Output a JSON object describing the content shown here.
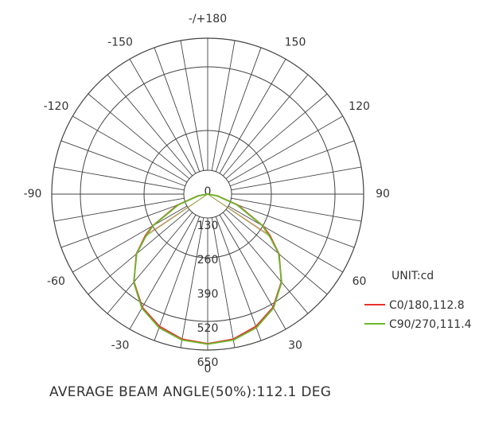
{
  "chart_data": {
    "type": "polar",
    "angle_labels": [
      {
        "angle": 180,
        "text": "-/+180"
      },
      {
        "angle": -150,
        "text": "-150"
      },
      {
        "angle": 150,
        "text": "150"
      },
      {
        "angle": -120,
        "text": "-120"
      },
      {
        "angle": 120,
        "text": "120"
      },
      {
        "angle": -90,
        "text": "-90"
      },
      {
        "angle": 90,
        "text": "90"
      },
      {
        "angle": -60,
        "text": "-60"
      },
      {
        "angle": 60,
        "text": "60"
      },
      {
        "angle": -30,
        "text": "-30"
      },
      {
        "angle": 30,
        "text": "30"
      },
      {
        "angle": 0,
        "text": "0"
      }
    ],
    "radial_ticks": [
      {
        "value": 0,
        "text": "0"
      },
      {
        "value": 130,
        "text": "130"
      },
      {
        "value": 260,
        "text": "260"
      },
      {
        "value": 390,
        "text": "390"
      },
      {
        "value": 520,
        "text": "520"
      },
      {
        "value": 650,
        "text": "650"
      }
    ],
    "r_max": 650,
    "angle_step": 10,
    "unit": "UNIT:cd",
    "series": [
      {
        "name": "C0/180,112.8",
        "color": "#e8322e",
        "angles": [
          0,
          10,
          20,
          30,
          40,
          50,
          56.4,
          60,
          70,
          80,
          90,
          -90,
          -80,
          -70,
          -60,
          -56.4,
          -50,
          -40,
          -30,
          -20,
          -10
        ],
        "values": [
          650,
          640,
          612,
          568,
          498,
          405,
          325,
          278,
          140,
          42,
          0,
          0,
          42,
          140,
          278,
          325,
          405,
          498,
          568,
          612,
          640
        ]
      },
      {
        "name": "C90/270,111.4",
        "color": "#6ab82c",
        "angles": [
          0,
          10,
          20,
          30,
          40,
          50,
          55.7,
          60,
          70,
          80,
          90,
          -90,
          -80,
          -70,
          -60,
          -55.7,
          -50,
          -40,
          -30,
          -20,
          -10
        ],
        "values": [
          652,
          644,
          618,
          572,
          500,
          402,
          325,
          274,
          135,
          40,
          0,
          0,
          40,
          135,
          274,
          325,
          402,
          500,
          572,
          618,
          644
        ]
      }
    ],
    "footer": "AVERAGE BEAM ANGLE(50%):112.1 DEG"
  }
}
